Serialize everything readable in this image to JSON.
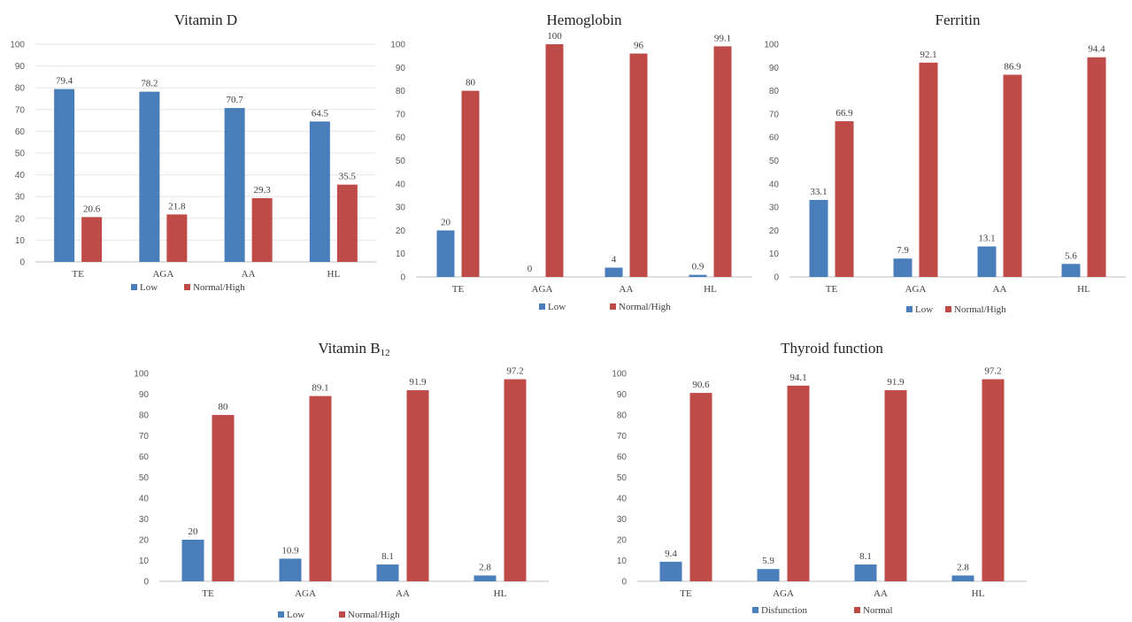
{
  "colors": {
    "low": "#4a7ebb",
    "high": "#be4b48"
  },
  "chart_data": [
    {
      "type": "bar",
      "title": "Vitamin D",
      "categories": [
        "TE",
        "AGA",
        "AA",
        "HL"
      ],
      "series": [
        {
          "name": "Low",
          "values": [
            79.4,
            78.2,
            70.7,
            64.5
          ],
          "labels": [
            "79.4",
            "78.2",
            "70.7",
            "64.5"
          ]
        },
        {
          "name": "Normal/High",
          "values": [
            20.6,
            21.8,
            29.3,
            35.5
          ],
          "labels": [
            "20.6",
            "21.8",
            "29.3",
            "35.5"
          ]
        }
      ],
      "ylim": [
        0,
        100
      ],
      "yticks": [
        "0",
        "10",
        "20",
        "30",
        "40",
        "50",
        "60",
        "70",
        "80",
        "90",
        "100"
      ],
      "grid": true,
      "legend_position": "bottom"
    },
    {
      "type": "bar",
      "title": "Hemoglobin",
      "categories": [
        "TE",
        "AGA",
        "AA",
        "HL"
      ],
      "series": [
        {
          "name": "Low",
          "values": [
            20,
            0,
            4,
            0.9
          ],
          "labels": [
            "20",
            "0",
            "4",
            "0.9"
          ]
        },
        {
          "name": "Normal/High",
          "values": [
            80,
            100,
            96,
            99.1
          ],
          "labels": [
            "80",
            "100",
            "96",
            "99.1"
          ]
        }
      ],
      "ylim": [
        0,
        100
      ],
      "yticks": [
        "0",
        "10",
        "20",
        "30",
        "40",
        "50",
        "60",
        "70",
        "80",
        "90",
        "100"
      ],
      "grid": false,
      "legend_position": "bottom"
    },
    {
      "type": "bar",
      "title": "Ferritin",
      "categories": [
        "TE",
        "AGA",
        "AA",
        "HL"
      ],
      "series": [
        {
          "name": "Low",
          "values": [
            33.1,
            7.9,
            13.1,
            5.6
          ],
          "labels": [
            "33.1",
            "7.9",
            "13.1",
            "5.6"
          ]
        },
        {
          "name": "Normal/High",
          "values": [
            66.9,
            92.1,
            86.9,
            94.4
          ],
          "labels": [
            "66.9",
            "92.1",
            "86.9",
            "94.4"
          ]
        }
      ],
      "ylim": [
        0,
        100
      ],
      "yticks": [
        "0",
        "10",
        "20",
        "30",
        "40",
        "50",
        "60",
        "70",
        "80",
        "90",
        "100"
      ],
      "grid": false,
      "legend_position": "bottom"
    },
    {
      "type": "bar",
      "title": "Vitamin B",
      "title_subscript": "12",
      "categories": [
        "TE",
        "AGA",
        "AA",
        "HL"
      ],
      "series": [
        {
          "name": "Low",
          "values": [
            20,
            10.9,
            8.1,
            2.8
          ],
          "labels": [
            "20",
            "10.9",
            "8.1",
            "2.8"
          ]
        },
        {
          "name": "Normal/High",
          "values": [
            80,
            89.1,
            91.9,
            97.2
          ],
          "labels": [
            "80",
            "89.1",
            "91.9",
            "97.2"
          ]
        }
      ],
      "ylim": [
        0,
        100
      ],
      "yticks": [
        "0",
        "10",
        "20",
        "30",
        "40",
        "50",
        "60",
        "70",
        "80",
        "90",
        "100"
      ],
      "grid": false,
      "legend_position": "bottom"
    },
    {
      "type": "bar",
      "title": "Thyroid function",
      "categories": [
        "TE",
        "AGA",
        "AA",
        "HL"
      ],
      "series": [
        {
          "name": "Disfunction",
          "values": [
            9.4,
            5.9,
            8.1,
            2.8
          ],
          "labels": [
            "9.4",
            "5.9",
            "8.1",
            "2.8"
          ]
        },
        {
          "name": "Normal",
          "values": [
            90.6,
            94.1,
            91.9,
            97.2
          ],
          "labels": [
            "90.6",
            "94.1",
            "91.9",
            "97.2"
          ]
        }
      ],
      "ylim": [
        0,
        100
      ],
      "yticks": [
        "0",
        "10",
        "20",
        "30",
        "40",
        "50",
        "60",
        "70",
        "80",
        "90",
        "100"
      ],
      "grid": false,
      "legend_position": "bottom"
    }
  ]
}
